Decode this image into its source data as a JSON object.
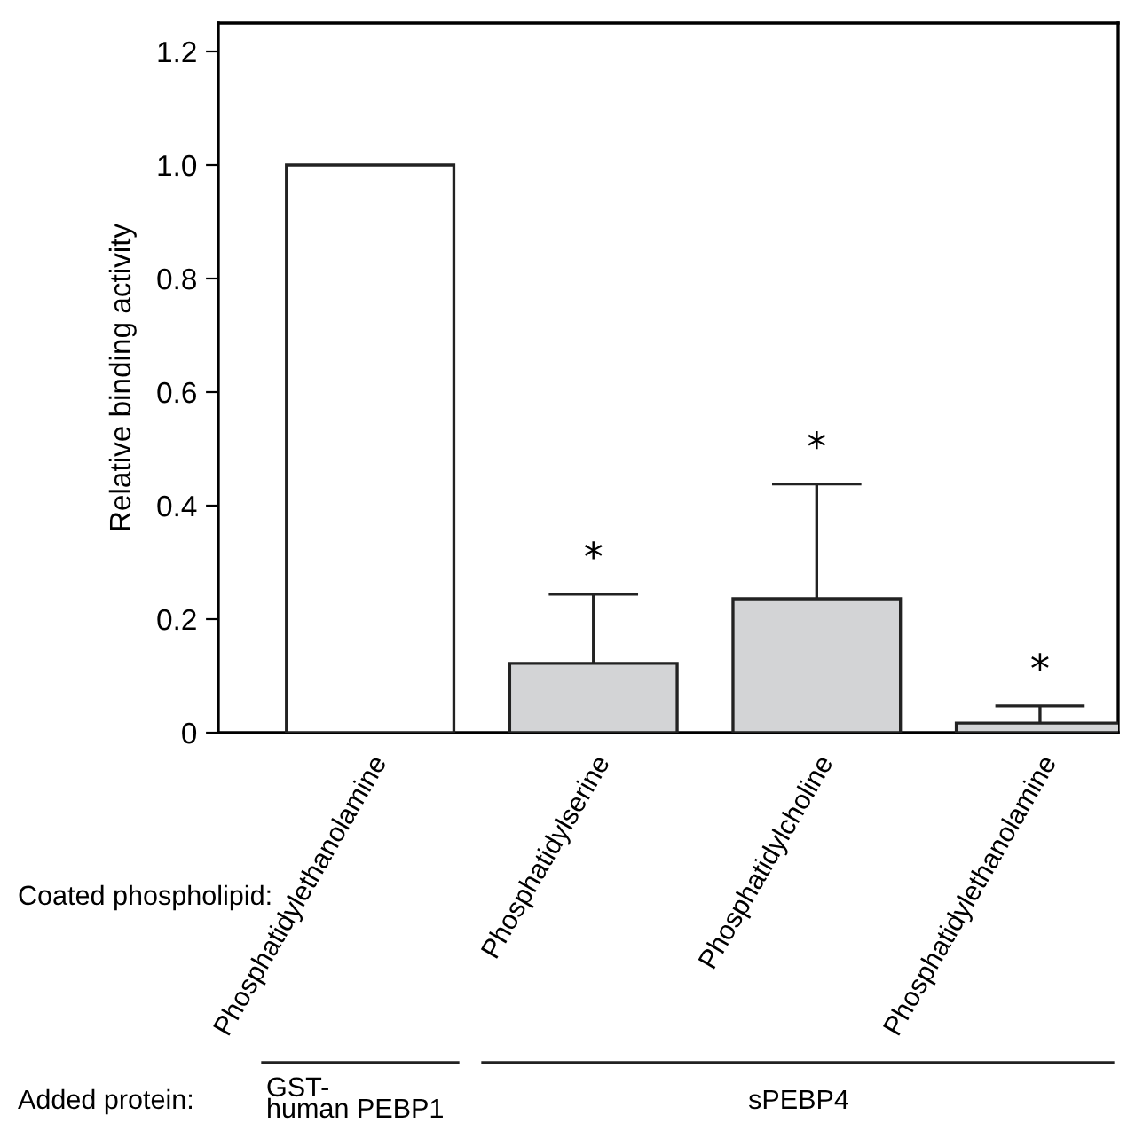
{
  "chart_data": {
    "type": "bar",
    "ylabel": "Relative binding activity",
    "categories": [
      "Phosphatidylethanolamine",
      "Phosphatidylserine",
      "Phosphatidylcholine",
      "Phosphatidylethanolamine"
    ],
    "values": [
      1.0,
      0.122,
      0.236,
      0.017
    ],
    "colors": [
      "#ffffff",
      "#d3d4d6",
      "#d3d4d6",
      "#d3d4d6"
    ],
    "errors": [
      null,
      [
        0.122,
        0.244
      ],
      [
        0.236,
        0.438
      ],
      [
        0.017,
        0.047
      ]
    ],
    "ylim": [
      0,
      1.25
    ],
    "yticks": [
      {
        "value": 0,
        "label": "0"
      },
      0.2,
      0.4,
      0.6,
      0.8,
      {
        "value": 1.0,
        "label": "1.0"
      },
      1.2
    ],
    "grid": false,
    "annotations": [
      "Coated phospholipid:",
      "Added protein:",
      "GST-\nhuman PEBP1",
      "sPEBP4",
      "*",
      "*",
      "*"
    ]
  }
}
